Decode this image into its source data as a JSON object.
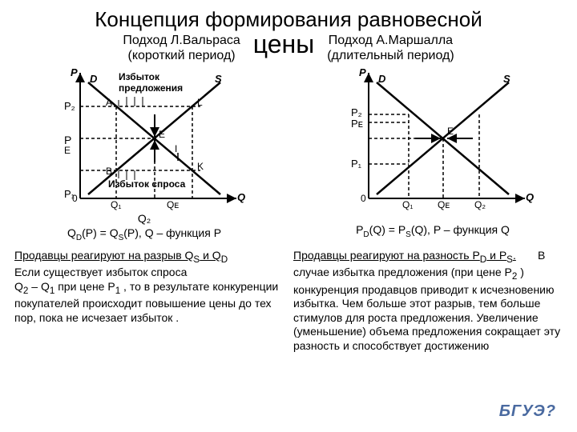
{
  "title_line1": "Концепция формирования равновесной",
  "title_center": "цены",
  "left": {
    "heading1": "Подход  Л.Вальраса",
    "heading2": "(короткий период)",
    "surplus_top": "Избыток",
    "surplus_top2": "предложения",
    "surplus_bot": "Избыток спроса",
    "eq_line1": "Q₂",
    "eq_line2_html": "Q<sub>D</sub>(P) = Q<sub>S</sub>(P),  Q – функция P",
    "desc_html": "<span class='underlined'>Продавцы реагируют на разрыв  Q<sub>S</sub> и Q<sub>D</sub></span><br>Если существует избыток спроса<br>Q<sub>2</sub> – Q<sub>1</sub> при цене P<sub>1</sub> , то в результате конкуренции покупателей происходит повышение цены до тех пор, пока не исчезает избыток .",
    "chart": {
      "axes_color": "#000000",
      "line_color": "#000000",
      "dash": "3,3",
      "P": "P",
      "Q": "Q",
      "O": "0",
      "D": "D",
      "S": "S",
      "A": "A",
      "L": "L",
      "E": "E",
      "B": "B",
      "K": "K",
      "P2": "P₂",
      "PE": "P",
      "PE2": "E",
      "P1": "P₁",
      "Q1": "Q₁",
      "QE": "Qᴇ"
    }
  },
  "right": {
    "heading1": "Подход  А.Маршалла",
    "heading2": "(длительный период)",
    "eq_html": "P<sub>D</sub>(Q) = P<sub>S</sub>(Q),  P – функция Q",
    "desc_html": "<span class='underlined'>Продавцы реагируют на разность P<sub>D</sub> и P<sub>S</sub>.</span> &nbsp;&nbsp;&nbsp;&nbsp;&nbsp;&nbsp;В случае избытка предложения (при цене P<sub>2</sub> ) конкуренция продавцов приводит к исчезновению избытка.  Чем больше этот разрыв, тем больше стимулов для роста предложения. Увеличение (уменьшение) объема предложения сокращает эту разность и способствует достижению",
    "chart": {
      "P": "P",
      "Q": "Q",
      "O": "0",
      "D": "D",
      "S": "S",
      "E": "E",
      "P2": "P₂",
      "PE": "Pᴇ",
      "P1": "P₁",
      "Q1": "Q₁",
      "QE": "Qᴇ",
      "Q2": "Q₂"
    }
  },
  "logo": "БГУЭ?"
}
